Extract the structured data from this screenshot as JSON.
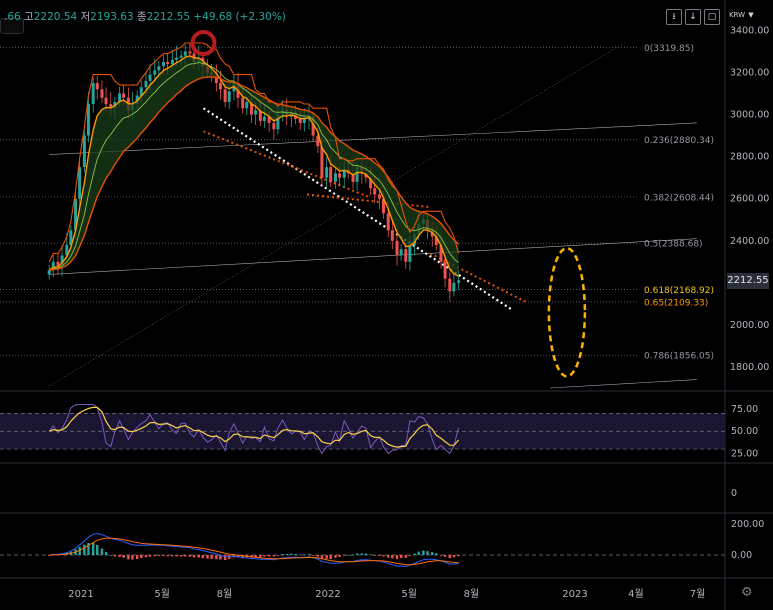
{
  "header": {
    "open_partial": ".66",
    "high_label": "고",
    "high": "2220.54",
    "low_label": "저",
    "low": "2193.63",
    "close_label": "종",
    "close": "2212.55",
    "change": "+49.68 (+2.30%)",
    "currency": "KRW",
    "toolbar_icons": [
      "download-icon",
      "arrow-down-icon",
      "fullscreen-icon"
    ]
  },
  "colors": {
    "background": "#000000",
    "candle_up": "#26a69a",
    "candle_down": "#ef5350",
    "ema_orange": "#ff9800",
    "ema_dark": "#e65100",
    "cloud_green": "#1b3d1b",
    "cloud_red": "#4a1212",
    "fib_label": "#9598a1",
    "fib_highlight": "#f5c518",
    "rsi_line": "#7e57c2",
    "rsi_signal": "#f7d24a",
    "macd_line": "#2962ff",
    "macd_signal": "#ff6d00",
    "marker_circle": "#b71c1c",
    "ellipse": "#ffb300"
  },
  "chart_data": [
    {
      "type": "candlestick",
      "name": "price",
      "y_ticks": [
        "3400.00",
        "3200.00",
        "3000.00",
        "2800.00",
        "2600.00",
        "2400.00",
        "2200.00",
        "2000.00",
        "1800.00"
      ],
      "ylim": [
        1700,
        3440
      ],
      "x_ticks": [
        "2021",
        "5월",
        "8월",
        "2022",
        "5월",
        "8월",
        "2023",
        "4월",
        "7월"
      ],
      "x_tick_dates": [
        "2021-01-01",
        "2021-05-01",
        "2021-08-01",
        "2022-01-01",
        "2022-05-01",
        "2022-08-01",
        "2023-01-01",
        "2023-04-01",
        "2023-07-01"
      ],
      "last_price": "2212.55",
      "weekly_closes": [
        2260,
        2300,
        2280,
        2330,
        2380,
        2450,
        2600,
        2750,
        2900,
        3050,
        3150,
        3120,
        3080,
        3050,
        3030,
        3060,
        3100,
        3080,
        3020,
        3050,
        3090,
        3130,
        3160,
        3190,
        3210,
        3230,
        3250,
        3240,
        3260,
        3270,
        3280,
        3300,
        3290,
        3250,
        3270,
        3230,
        3200,
        3190,
        3150,
        3120,
        3060,
        3110,
        3150,
        3080,
        3030,
        3060,
        3000,
        3020,
        2970,
        2990,
        2960,
        2930,
        3000,
        3020,
        2990,
        3010,
        2980,
        2960,
        2980,
        2990,
        2900,
        2850,
        2700,
        2750,
        2680,
        2720,
        2700,
        2740,
        2720,
        2680,
        2750,
        2720,
        2700,
        2650,
        2620,
        2600,
        2530,
        2450,
        2400,
        2330,
        2360,
        2300,
        2380,
        2430,
        2480,
        2500,
        2450,
        2420,
        2380,
        2300,
        2220,
        2160,
        2200,
        2212
      ],
      "fib_levels": [
        {
          "label": "0(3319.85)",
          "value": 3319.85,
          "highlight": false
        },
        {
          "label": "0.236(2880.34)",
          "value": 2880.34,
          "highlight": false
        },
        {
          "label": "0.382(2608.44)",
          "value": 2608.44,
          "highlight": false
        },
        {
          "label": "0.5(2388.68)",
          "value": 2388.68,
          "highlight": false
        },
        {
          "label": "0.618(2168.92)",
          "value": 2168.92,
          "highlight": true
        },
        {
          "label": "0.65(2109.33)",
          "value": 2109.33,
          "highlight": false
        },
        {
          "label": "0.786(1856.05)",
          "value": 1856.05,
          "highlight": false
        }
      ]
    },
    {
      "type": "line",
      "name": "rsi",
      "y_ticks": [
        "75.00",
        "50.00",
        "25.00"
      ],
      "ylim": [
        20,
        85
      ]
    },
    {
      "type": "line",
      "name": "oscillator",
      "y_ticks": [
        "0"
      ]
    },
    {
      "type": "histogram",
      "name": "macd",
      "y_ticks": [
        "200.00",
        "0.00"
      ]
    }
  ]
}
